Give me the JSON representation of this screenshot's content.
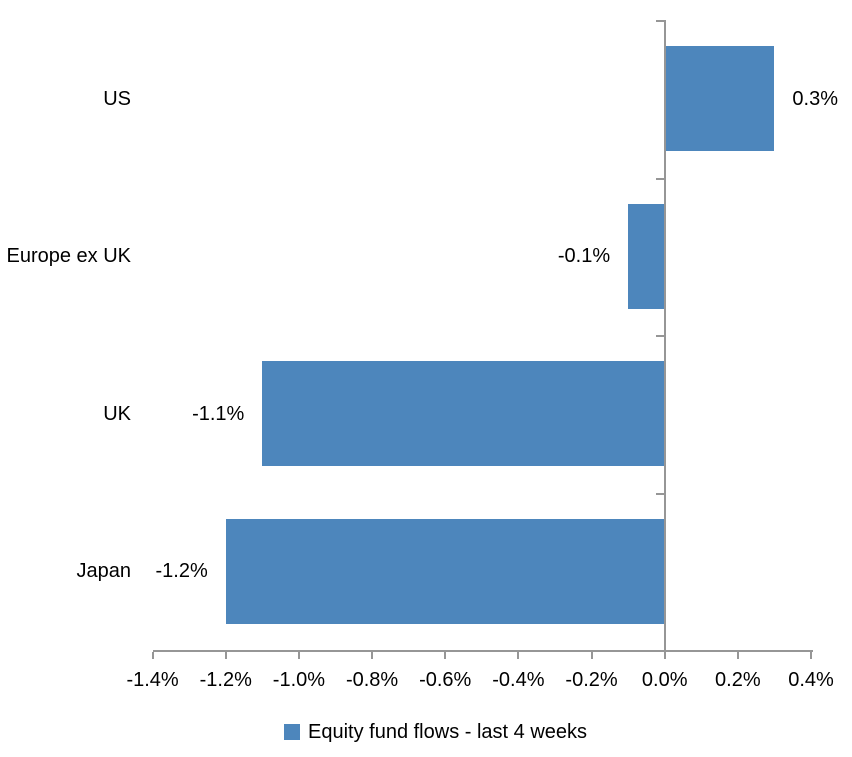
{
  "chart_data": {
    "type": "bar",
    "orientation": "horizontal",
    "title": "",
    "categories": [
      "US",
      "Europe ex UK",
      "UK",
      "Japan"
    ],
    "values": [
      0.3,
      -0.1,
      -1.1,
      -1.2
    ],
    "data_labels": [
      "0.3%",
      "-0.1%",
      "-1.1%",
      "-1.2%"
    ],
    "series_name": "Equity fund flows - last 4 weeks",
    "legend_position": "bottom",
    "xlim": [
      -1.4,
      0.4
    ],
    "x_tick_step": 0.2,
    "x_tick_labels": [
      "-1.4%",
      "-1.2%",
      "-1.0%",
      "-0.8%",
      "-0.6%",
      "-0.4%",
      "-0.2%",
      "0.0%",
      "0.2%",
      "0.4%"
    ],
    "grid": false,
    "colors": {
      "bar": "#4D86BC",
      "axis": "#969696",
      "text": "#000000",
      "background": "#FFFFFF"
    }
  }
}
